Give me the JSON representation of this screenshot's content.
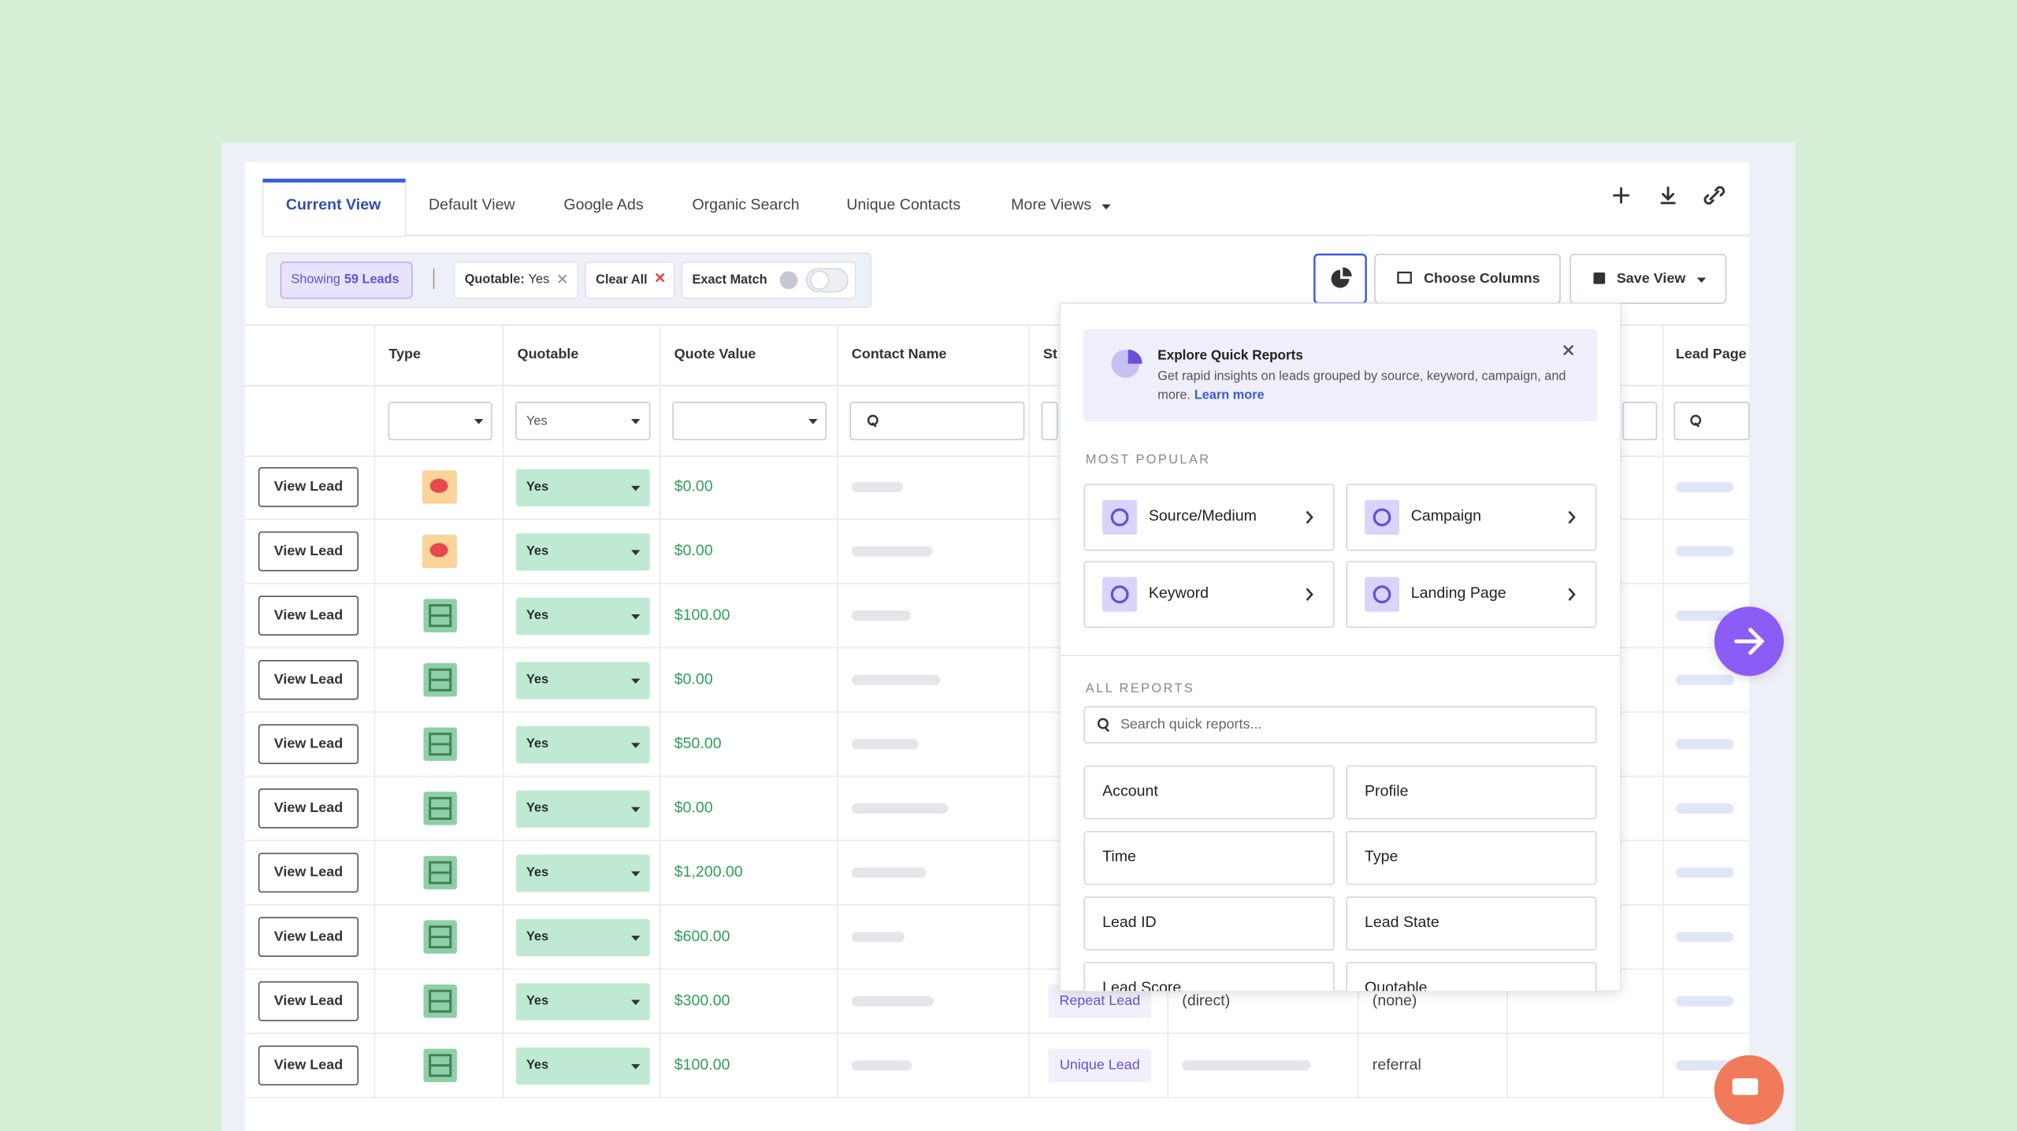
{
  "tabs": [
    "Current View",
    "Default View",
    "Google Ads",
    "Organic Search",
    "Unique Contacts",
    "More Views"
  ],
  "filters": {
    "showing_prefix": "Showing",
    "showing_count": "59 Leads",
    "quotable": "Quotable:",
    "quotable_value": "Yes",
    "clear_all": "Clear All",
    "exact_match": "Exact Match"
  },
  "toolbar": {
    "choose_columns": "Choose Columns",
    "save_view": "Save View"
  },
  "table": {
    "headers": [
      "Type",
      "Quotable",
      "Quote Value",
      "Contact Name",
      "St",
      "Lead Page"
    ],
    "filter_quotable": "Yes",
    "view_button": "View Lead",
    "rows": [
      {
        "quotable": "Yes",
        "quote_value": "$0.00"
      },
      {
        "quotable": "Yes",
        "quote_value": "$0.00"
      },
      {
        "quotable": "Yes",
        "quote_value": "$100.00"
      },
      {
        "quotable": "Yes",
        "quote_value": "$0.00"
      },
      {
        "quotable": "Yes",
        "quote_value": "$50.00"
      },
      {
        "quotable": "Yes",
        "quote_value": "$0.00"
      },
      {
        "quotable": "Yes",
        "quote_value": "$1,200.00"
      },
      {
        "quotable": "Yes",
        "quote_value": "$600.00"
      },
      {
        "quotable": "Yes",
        "quote_value": "$300.00",
        "status": "Repeat Lead",
        "source": "(direct)",
        "medium": "(none)"
      },
      {
        "quotable": "Yes",
        "quote_value": "$100.00",
        "status": "Unique Lead",
        "medium": "referral"
      }
    ]
  },
  "popup": {
    "title": "Explore Quick Reports",
    "description_1": "Get rapid insights on leads grouped by source, keyword, campaign, and",
    "description_2": "more.",
    "learn_more": "Learn more",
    "most_popular": "MOST POPULAR",
    "popular": [
      "Source/Medium",
      "Campaign",
      "Keyword",
      "Landing Page"
    ],
    "all_reports": "ALL REPORTS",
    "search_placeholder": "Search quick reports...",
    "reports": [
      "Account",
      "Profile",
      "Time",
      "Type",
      "Lead ID",
      "Lead State",
      "Lead Score",
      "Quotable"
    ]
  }
}
